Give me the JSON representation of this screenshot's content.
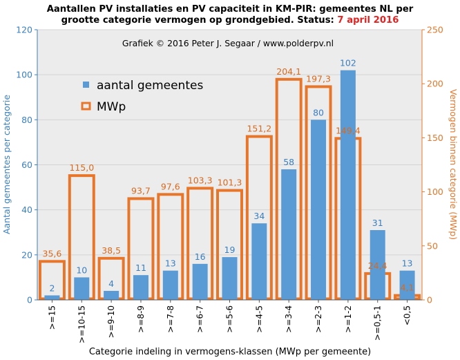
{
  "title": {
    "line1": "Aantallen PV installaties en PV capaciteit in KM-PIR: gemeentes NL per",
    "line2_prefix": "grootte categorie vermogen op grondgebied. Status:",
    "line2_date": "7 april 2016"
  },
  "credit": "Grafiek © 2016 Peter J. Segaar / www.polderpv.nl",
  "colors": {
    "bar": "#5b9bd5",
    "mw_outline": "#e8762a",
    "plot_bg": "#ececec",
    "grid": "#d4d4d4",
    "left_axis": "#3a7fc0",
    "right_axis": "#e8762a",
    "title_highlight": "#e32222"
  },
  "chart_data": {
    "type": "bar",
    "title": "Aantallen PV installaties en PV capaciteit in KM-PIR: gemeentes NL per grootte categorie vermogen op grondgebied. Status: 7 april 2016",
    "xlabel": "Categorie indeling in vermogens-klassen (MWp per gemeente)",
    "ylabel_left": "Aantal gemeentes per categorie",
    "ylabel_right": "Vermogen binnen categorie (MWp)",
    "ylim_left": [
      0,
      120
    ],
    "yticks_left": [
      "0",
      "20",
      "40",
      "60",
      "80",
      "100",
      "120"
    ],
    "ylim_right": [
      0,
      250
    ],
    "yticks_right": [
      "0",
      "50",
      "100",
      "150",
      "200",
      "250"
    ],
    "grid": true,
    "legend_position": "top-left",
    "categories": [
      ">=15",
      ">=10-15",
      ">=9-10",
      ">=8-9",
      ">=7-8",
      ">=6-7",
      ">=5-6",
      ">=4-5",
      ">=3-4",
      ">=2-3",
      ">=1-2",
      ">=0,5-1",
      "<0,5"
    ],
    "series": [
      {
        "name": "aantal gemeentes",
        "axis": "left",
        "values": [
          2,
          10,
          4,
          11,
          13,
          16,
          19,
          34,
          58,
          80,
          102,
          31,
          13
        ],
        "labels": [
          "2",
          "10",
          "4",
          "11",
          "13",
          "16",
          "19",
          "34",
          "58",
          "80",
          "102",
          "31",
          "13"
        ]
      },
      {
        "name": "MWp",
        "axis": "right",
        "values": [
          35.6,
          115.0,
          38.5,
          93.7,
          97.6,
          103.3,
          101.3,
          151.2,
          204.1,
          197.3,
          149.4,
          24.4,
          4.1
        ],
        "labels": [
          "35,6",
          "115,0",
          "38,5",
          "93,7",
          "97,6",
          "103,3",
          "101,3",
          "151,2",
          "204,1",
          "197,3",
          "149,4",
          "24,4",
          "4,1"
        ]
      }
    ]
  }
}
